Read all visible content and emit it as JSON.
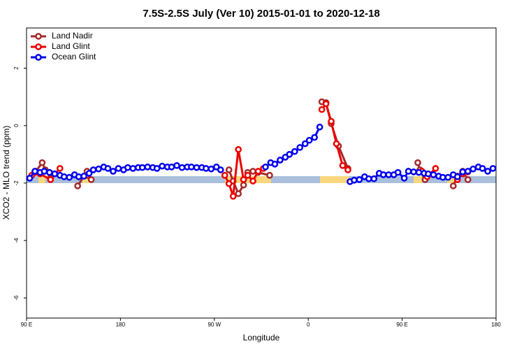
{
  "chart_data": {
    "type": "line",
    "title": "7.5S-2.5S July (Ver 10)   2015-01-01 to 2020-12-18",
    "x_label": "Longitude",
    "y_label": "XCO2 - MLO trend (ppm)",
    "xlim": [
      90,
      540
    ],
    "xticks": [
      {
        "value": 90,
        "label": "90 E"
      },
      180,
      {
        "value": 270,
        "label": "90 W"
      },
      {
        "value": 360,
        "label": "0"
      },
      {
        "value": 450,
        "label": "90 E"
      },
      {
        "value": 540,
        "label": "180"
      }
    ],
    "ylim": [
      -6.7,
      3.4
    ],
    "yticks": [
      -6,
      -4,
      -2,
      0,
      2
    ],
    "legend": "top-left",
    "series": [
      {
        "name": "Land Nadir",
        "color": "#a52a2a",
        "x": [
          99,
          105,
          108,
          113,
          null,
          139,
          148,
          152,
          null,
          284,
          288,
          293,
          298,
          302,
          307,
          312,
          323,
          null,
          373,
          377,
          382,
          389,
          398,
          null,
          465,
          467,
          472,
          null,
          499,
          503,
          508,
          513
        ],
        "values": [
          -1.59,
          -1.29,
          -1.54,
          -1.83,
          null,
          -2.1,
          -1.59,
          -1.88,
          null,
          -1.54,
          -1.93,
          -2.37,
          -2.07,
          -1.63,
          -1.59,
          -1.63,
          -1.73,
          null,
          0.83,
          0.8,
          0.07,
          -0.71,
          -1.49,
          null,
          -1.29,
          -1.54,
          -1.88,
          null,
          -2.1,
          -1.76,
          -1.59,
          -1.88
        ]
      },
      {
        "name": "Land Glint",
        "color": "#ee0000",
        "x": [
          95,
          103,
          113,
          122,
          null,
          148,
          null,
          280,
          284,
          288,
          293,
          298,
          302,
          307,
          312,
          317,
          null,
          373,
          377,
          382,
          387,
          393,
          398,
          null,
          469,
          474,
          482,
          null,
          503,
          508,
          513
        ],
        "values": [
          -1.73,
          -1.68,
          -1.88,
          -1.49,
          null,
          -1.73,
          null,
          -1.73,
          -2.02,
          -2.46,
          -0.83,
          -1.88,
          -1.73,
          -1.93,
          -1.59,
          -1.49,
          null,
          0.56,
          0.76,
          0.15,
          -0.63,
          -1.39,
          -1.54,
          null,
          -1.59,
          -1.78,
          -1.49,
          null,
          -1.88,
          -1.68,
          -1.61
        ]
      },
      {
        "name": "Ocean Glint",
        "color": "#0000ee",
        "x": [
          93,
          98,
          103,
          107,
          112,
          117,
          122,
          126,
          131,
          136,
          140,
          145,
          150,
          154,
          159,
          164,
          168,
          173,
          178,
          183,
          187,
          192,
          197,
          201,
          206,
          211,
          215,
          220,
          225,
          229,
          234,
          239,
          244,
          248,
          253,
          258,
          262,
          267,
          272,
          276,
          null,
          319,
          324,
          328,
          333,
          338,
          342,
          347,
          352,
          357,
          361,
          366,
          371,
          null,
          400,
          404,
          409,
          414,
          418,
          423,
          428,
          432,
          437,
          442,
          446,
          452,
          456,
          461,
          466,
          471,
          475,
          480,
          485,
          489,
          494,
          499,
          503,
          508,
          513,
          518,
          523,
          527,
          532,
          537
        ],
        "values": [
          -1.83,
          -1.59,
          -1.63,
          -1.59,
          -1.63,
          -1.68,
          -1.73,
          -1.78,
          -1.8,
          -1.71,
          -1.78,
          -1.76,
          -1.66,
          -1.54,
          -1.51,
          -1.44,
          -1.49,
          -1.59,
          -1.49,
          -1.54,
          -1.46,
          -1.49,
          -1.46,
          -1.46,
          -1.44,
          -1.46,
          -1.49,
          -1.41,
          -1.44,
          -1.44,
          -1.39,
          -1.46,
          -1.44,
          -1.44,
          -1.46,
          -1.46,
          -1.49,
          -1.51,
          -1.44,
          -1.54,
          null,
          -1.44,
          -1.29,
          -1.34,
          -1.2,
          -1.1,
          -1.0,
          -0.9,
          -0.76,
          -0.63,
          -0.51,
          -0.41,
          -0.05,
          null,
          -1.95,
          -1.9,
          -1.88,
          -1.78,
          -1.85,
          -1.85,
          -1.66,
          -1.71,
          -1.71,
          -1.71,
          -1.63,
          -1.83,
          -1.59,
          -1.61,
          -1.63,
          -1.66,
          -1.68,
          -1.71,
          -1.76,
          -1.8,
          -1.8,
          -1.71,
          -1.78,
          -1.61,
          -1.59,
          -1.51,
          -1.44,
          -1.49,
          -1.59,
          -1.49
        ]
      }
    ]
  }
}
